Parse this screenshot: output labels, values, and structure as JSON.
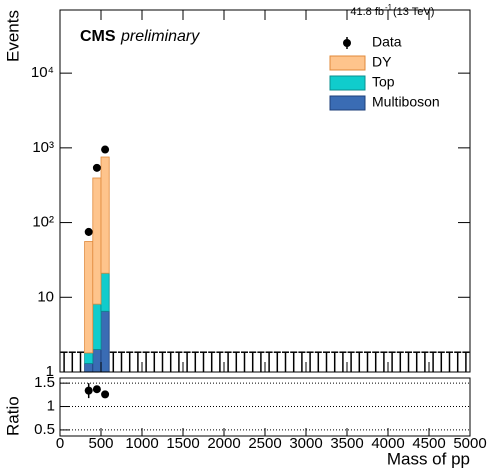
{
  "chart_data": [
    {
      "type": "histogram",
      "experiment": "CMS",
      "status": "preliminary",
      "lumi": "41.8 fb",
      "lumi_exponent": "-1",
      "energy": "(13 TeV)",
      "y_label": "Events",
      "log_y": true,
      "xlim": [
        0,
        5000
      ],
      "ylim": [
        1,
        70000
      ],
      "yticks": [
        1,
        10,
        {
          "value": 100,
          "label": "10²"
        },
        {
          "value": 1000,
          "label": "10³"
        },
        {
          "value": 10000,
          "label": "10⁴"
        }
      ],
      "bins": [
        0,
        100,
        200,
        300,
        400,
        500,
        600,
        700,
        800,
        900,
        1000,
        1100,
        1200,
        1300,
        1400,
        1500,
        1600,
        1700,
        1800,
        1900,
        2000,
        2100,
        2200,
        2300,
        2400,
        2500,
        2600,
        2700,
        2800,
        2900,
        3000,
        3100,
        3200,
        3300,
        3400,
        3500,
        3600,
        3700,
        3800,
        3900,
        4000,
        4100,
        4200,
        4300,
        4400,
        4500,
        4600,
        4700,
        4800,
        4900,
        5000
      ],
      "data": {
        "name": "Data",
        "color": "#000000",
        "values": [
          0,
          0,
          0,
          75,
          540,
          950,
          0,
          0,
          0,
          0,
          0,
          0,
          0,
          0,
          0,
          0,
          0,
          0,
          0,
          0,
          0,
          0,
          0,
          0,
          0,
          0,
          0,
          0,
          0,
          0,
          0,
          0,
          0,
          0,
          0,
          0,
          0,
          0,
          0,
          0,
          0,
          0,
          0,
          0,
          0,
          0,
          0,
          0,
          0,
          0
        ],
        "errors": [
          1.84,
          1.84,
          1.84,
          8.7,
          23.2,
          30.8,
          1.84,
          1.84,
          1.84,
          1.84,
          1.84,
          1.84,
          1.84,
          1.84,
          1.84,
          1.84,
          1.84,
          1.84,
          1.84,
          1.84,
          1.84,
          1.84,
          1.84,
          1.84,
          1.84,
          1.84,
          1.84,
          1.84,
          1.84,
          1.84,
          1.84,
          1.84,
          1.84,
          1.84,
          1.84,
          1.84,
          1.84,
          1.84,
          1.84,
          1.84,
          1.84,
          1.84,
          1.84,
          1.84,
          1.84,
          1.84,
          1.84,
          1.84,
          1.84,
          1.84
        ]
      },
      "series": [
        {
          "name": "Multiboson",
          "color": "#3a6cb4",
          "edge": "#1d3f7a",
          "values": [
            0,
            0,
            0,
            1.3,
            2.0,
            6.5,
            0,
            0,
            0,
            0,
            0,
            0,
            0,
            0,
            0,
            0,
            0,
            0,
            0,
            0,
            0,
            0,
            0,
            0,
            0,
            0,
            0,
            0,
            0,
            0,
            0,
            0,
            0,
            0,
            0,
            0,
            0,
            0,
            0,
            0,
            0,
            0,
            0,
            0,
            0,
            0,
            0,
            0,
            0,
            0
          ]
        },
        {
          "name": "Top",
          "color": "#10cccc",
          "edge": "#0a8f8f",
          "values": [
            0,
            0,
            0,
            0.5,
            6.1,
            14.5,
            0,
            0,
            0,
            0,
            0,
            0,
            0,
            0,
            0,
            0,
            0,
            0,
            0,
            0,
            0,
            0,
            0,
            0,
            0,
            0,
            0,
            0,
            0,
            0,
            0,
            0,
            0,
            0,
            0,
            0,
            0,
            0,
            0,
            0,
            0,
            0,
            0,
            0,
            0,
            0,
            0,
            0,
            0,
            0
          ]
        },
        {
          "name": "DY",
          "color": "#fec48c",
          "edge": "#e0893a",
          "values": [
            0,
            0,
            0,
            54,
            387,
            733,
            0,
            0,
            0,
            0,
            0,
            0,
            0,
            0,
            0,
            0,
            0,
            0,
            0,
            0,
            0,
            0,
            0,
            0,
            0,
            0,
            0,
            0,
            0,
            0,
            0,
            0,
            0,
            0,
            0,
            0,
            0,
            0,
            0,
            0,
            0,
            0,
            0,
            0,
            0,
            0,
            0,
            0,
            0,
            0
          ]
        }
      ]
    },
    {
      "type": "ratio",
      "y_label": "Ratio",
      "x_label": "Mass of pp",
      "xlim": [
        0,
        5000
      ],
      "xticks": [
        0,
        500,
        1000,
        1500,
        2000,
        2500,
        3000,
        3500,
        4000,
        4500,
        5000
      ],
      "ylim": [
        0.37,
        1.61
      ],
      "yticks": [
        0.5,
        1,
        1.5
      ],
      "grid": true,
      "x": [
        350,
        450,
        550
      ],
      "values": [
        1.34,
        1.37,
        1.26
      ],
      "errors": [
        0.16,
        0.06,
        0.04
      ],
      "color": "#000000"
    }
  ]
}
